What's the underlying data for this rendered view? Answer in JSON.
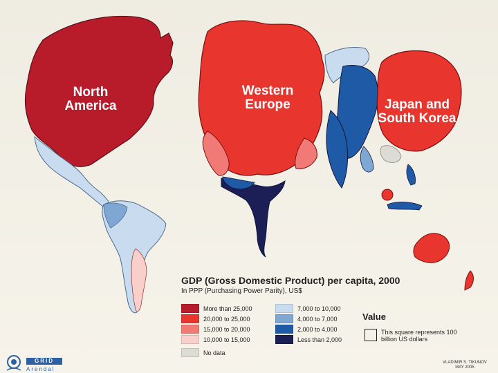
{
  "map": {
    "regions": [
      {
        "label": "North America",
        "color": "#b81b2a"
      },
      {
        "label": "Western Europe",
        "color": "#e8352e"
      },
      {
        "label": "Japan and South Korea",
        "color": "#e8352e"
      }
    ],
    "colors": {
      "more_than_25000": "#b81b2a",
      "c20000_25000": "#e8352e",
      "c15000_20000": "#f17a76",
      "c10000_15000": "#f9cfcc",
      "c7000_10000": "#c9dcef",
      "c4000_7000": "#7fa7d3",
      "c2000_4000": "#1e5aa6",
      "less_than_2000": "#1b1f55",
      "no_data": "#dcdcd4"
    }
  },
  "legend": {
    "title": "GDP (Gross Domestic Product) per capita, 2000",
    "subtitle": "In PPP (Purchasing Power Parity), US$",
    "items": [
      {
        "label": "More than 25,000",
        "color": "#b81b2a"
      },
      {
        "label": "20,000 to 25,000",
        "color": "#e8352e"
      },
      {
        "label": "15,000 to 20,000",
        "color": "#f17a76"
      },
      {
        "label": "10,000 to 15,000",
        "color": "#f9cfcc"
      },
      {
        "label": "7,000 to 10,000",
        "color": "#c9dcef"
      },
      {
        "label": "4,000 to 7,000",
        "color": "#7fa7d3"
      },
      {
        "label": "2,000 to 4,000",
        "color": "#1e5aa6"
      },
      {
        "label": "Less than 2,000",
        "color": "#1b1f55"
      },
      {
        "label": "No data",
        "color": "#dcdcd4"
      }
    ],
    "value": {
      "title": "Value",
      "note": "This square represents 100 billion US dollars"
    }
  },
  "credit": {
    "line1": "VLADIMIR S. TIKUNOV",
    "line2": "MAY 2005"
  },
  "logos": {
    "grid": "GRID",
    "arendal": "Arendal"
  }
}
